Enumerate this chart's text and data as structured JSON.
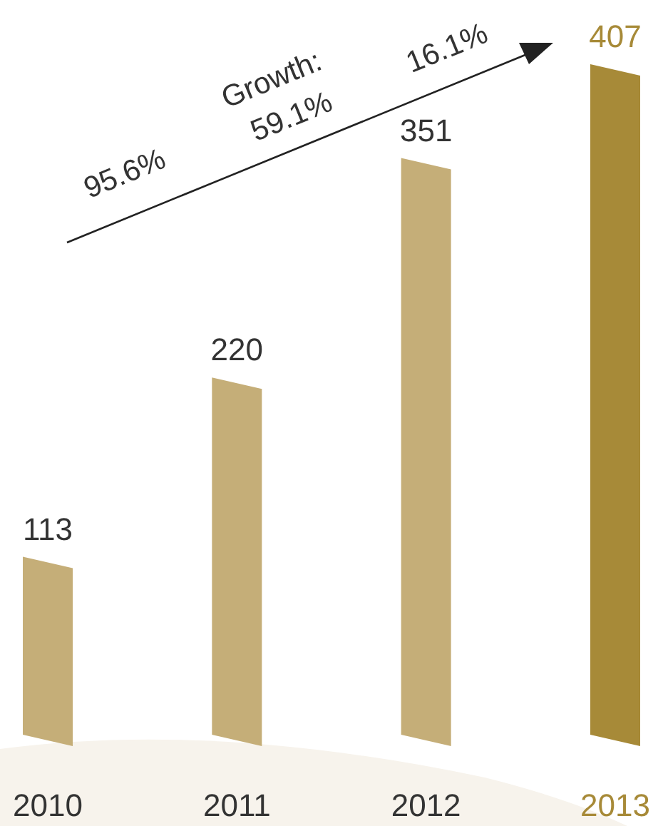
{
  "chart_data": {
    "type": "bar",
    "categories": [
      "2010",
      "2011",
      "2012",
      "2013"
    ],
    "values": [
      113,
      220,
      351,
      407
    ],
    "colors": [
      "#c5ae78",
      "#c5ae78",
      "#c5ae78",
      "#a78a38"
    ],
    "data_labels": true,
    "annotations": [
      "Growth:",
      "95.6%",
      "59.1%",
      "16.1%"
    ]
  }
}
